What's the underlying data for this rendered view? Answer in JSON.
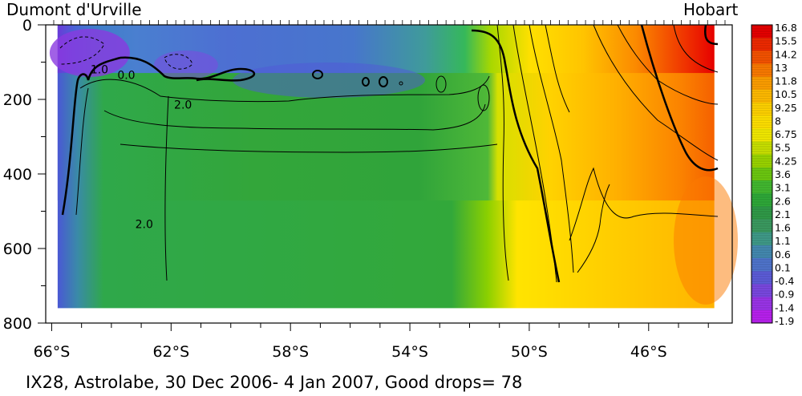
{
  "chart_data": {
    "type": "heatmap",
    "title_left": "Dumont d'Urville",
    "title_right": "Hobart",
    "caption": "IX28, Astrolabe, 30 Dec 2006- 4 Jan 2007, Good drops= 78",
    "x_axis": {
      "ticks": [
        {
          "value": 66,
          "label": "66°S"
        },
        {
          "value": 62,
          "label": "62°S"
        },
        {
          "value": 58,
          "label": "58°S"
        },
        {
          "value": 54,
          "label": "54°S"
        },
        {
          "value": 50,
          "label": "50°S"
        },
        {
          "value": 46,
          "label": "46°S"
        }
      ],
      "range": [
        66.2,
        43.2
      ]
    },
    "y_axis": {
      "ticks": [
        {
          "value": 0,
          "label": "0"
        },
        {
          "value": 200,
          "label": "200"
        },
        {
          "value": 400,
          "label": "400"
        },
        {
          "value": 600,
          "label": "600"
        },
        {
          "value": 800,
          "label": "800"
        }
      ],
      "range": [
        0,
        800
      ],
      "inverted": true
    },
    "data_extent": {
      "lat": [
        65.8,
        43.8
      ],
      "depth": [
        0,
        760
      ]
    },
    "colorbar": {
      "labels": [
        "16.8",
        "15.5",
        "14.2",
        "13",
        "11.8",
        "10.5",
        "9.25",
        "8",
        "6.75",
        "5.5",
        "4.25",
        "3.6",
        "3.1",
        "2.6",
        "2.1",
        "1.6",
        "1.1",
        "0.6",
        "0.1",
        "-0.4",
        "-0.9",
        "-1.4",
        "-1.9"
      ],
      "colors": [
        "#e60000",
        "#ee2a00",
        "#f55200",
        "#fa7a00",
        "#fd9e00",
        "#ffba00",
        "#ffd200",
        "#ffe000",
        "#f2e900",
        "#c8e000",
        "#9ad400",
        "#6cc810",
        "#42b830",
        "#2ea838",
        "#2f9a48",
        "#3a9a60",
        "#3f9a88",
        "#4489b0",
        "#4f74cc",
        "#5c5cd8",
        "#7a48e0",
        "#9a34e8",
        "#b820ee"
      ]
    },
    "contour_labels": [
      {
        "text": "1.0",
        "lat": 64.7,
        "depth": 130
      },
      {
        "text": "0.0",
        "lat": 63.8,
        "depth": 145
      },
      {
        "text": "2.0",
        "lat": 61.9,
        "depth": 225
      },
      {
        "text": "2.0",
        "lat": 63.2,
        "depth": 545
      }
    ],
    "grid": false
  }
}
